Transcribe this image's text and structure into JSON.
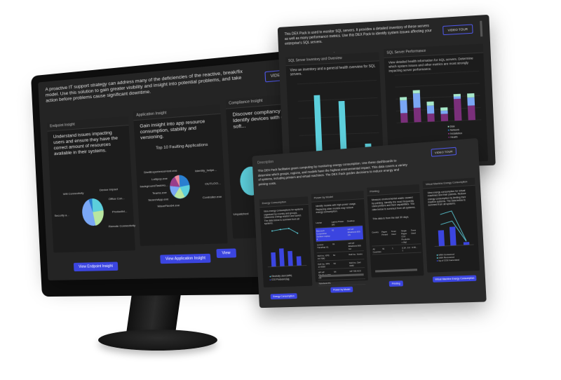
{
  "monitor": {
    "description": "A proactive IT support strategy can address many of the deficiencies of the reactive, break/fix model. Use this solution to gain greater visibility and insight into potential problems, and take action before problems cause significant downtime.",
    "video_tour": "VIDEO TOUR",
    "cards": [
      {
        "title": "Endpoint Insight",
        "text": "Understand issues impacting users and ensure they have the correct amount of resources available in their systems.",
        "button": "View Endpoint Insight",
        "pie_labels": [
          "Wifi Connectivity",
          "Device Impact",
          "Office Con...",
          "Productivi...",
          "Remote Connectivity",
          "Security a..."
        ]
      },
      {
        "title": "Application Insight",
        "text": "Gain insight into app resource consumption, stability and versioning.",
        "chart_title": "Top 10 Faulting Applications",
        "button": "View Application Insight",
        "pie_labels": [
          "ShellExperienceHost.exe",
          "Lollipop.exe",
          "backgroundTaskHo...",
          "Teams.exe",
          "SearchApp.exe",
          "WaveFlex64.exe",
          "Identity_helpe...",
          "OUTLOO...",
          "Controller.exe"
        ]
      },
      {
        "title": "Compliance Insight",
        "text": "Discover compliancy of systems. Identify devices with o... outdated soft...",
        "pie_labels": [
          "Unpatched"
        ],
        "button": "View"
      }
    ],
    "colors": {
      "cyan": "#5ccfdc",
      "blue": "#7aa7f5",
      "green": "#b9e6a0",
      "accent": "#3b45e0"
    }
  },
  "sql_panel": {
    "description": "This DEX Pack is used to monitor SQL servers. It provides a detailed inventory of these servers as well as many performance metrics. Use this DEX Pack to identify system issues affecting your enterprise's SQL servers.",
    "video_tour": "VIDEO TOUR",
    "inventory": {
      "title": "SQL Server Inventory and Overview",
      "text": "View an inventory and a general health overview for SQL servers."
    },
    "performance": {
      "title": "SQL Server Performance",
      "text": "View detailed health information for SQL servers. Determine which system issues and other metrics are most strongly impacting server performance.",
      "legend": [
        "Disk",
        "Network",
        "Installation",
        "Health"
      ]
    }
  },
  "energy_panel": {
    "heading": "Description",
    "description": "This DEX Pack facilitates green computing by monitoring energy consumption. Use these dashboards to determine which groups, regions, and models have the highest environmental impact. This data covers a variety of systems, including printers and virtual machines. The DEX Pack guides decisions to reduce energy and printing costs.",
    "video_tour": "VIDEO TOUR",
    "cards": [
      {
        "title": "Energy Consumption",
        "text": "View energy consumptions for systems organized by country and groups. Determine energy wasted and saved. The data below is summed from all systems.",
        "legend": [
          "Electricity Used (kWh)",
          "CO2 Produced (kg)"
        ],
        "button": "Energy Consumption"
      },
      {
        "title": "Power by Model",
        "text": "Identify models with high power usage. Replacing older models may reduce energy consumption.",
        "button": "Power by Model",
        "table_headers": [
          "Laptop",
          "Laptop Power (W)",
          "Desktop"
        ],
        "table_rows": [
          [
            "Microsoft Corporation Surface Laptop 4",
            "61",
            "HP HP EliteDesk 800 G5"
          ],
          [
            "Lenovo ThinkPad X1",
            "61",
            "HP HP EliteDesk 800 G2"
          ],
          [
            "Dell Inc. XPS 15 7590",
            "61",
            "Dell Inc. Vostro"
          ],
          [
            "Dell Inc. XPS 13 9530",
            "54",
            "Dell Inc. Dell 3040"
          ],
          [
            "HP HP EliteBook 840 G5",
            "54",
            "HP 705 ACC"
          ],
          [
            "Notebook PC",
            "",
            ""
          ]
        ]
      },
      {
        "title": "Printing",
        "text": "Measure environmental waste caused by printing. Identify the most frequently used printers and their capabilities. The data below is summed from all systems.",
        "subtext": "This data is from the last 30 days.",
        "button": "Printing",
        "table_headers": [
          "Country",
          "Pages Printed",
          "Toner Used",
          "Single Pages CO2 Production (kg)",
          "Trees Used"
        ],
        "table_rows": [
          [
            "All Countries",
            "91",
            "1",
            "0.14...0.27",
            "0.09..."
          ]
        ]
      },
      {
        "title": "Virtual Machine Energy Consumption",
        "text": "View energy consumption for virtual machines and their parents. Reduce energy consumption by limiting their inactive systems. The data below is summed from all systems.",
        "legend": [
          "kWh Consumed",
          "kWh Recovered",
          "kg of CO2 Generated"
        ],
        "button": "Virtual Machine Energy Consumption"
      }
    ]
  },
  "chart_data": [
    {
      "type": "bar",
      "title": "",
      "categories": [
        "1",
        "2",
        "3",
        "4",
        "5",
        "6"
      ],
      "values": [
        0.2,
        33,
        0.5,
        29,
        0.6,
        4
      ],
      "ylim": [
        0,
        40
      ]
    },
    {
      "type": "bar",
      "stacked": true,
      "categories": [
        "1",
        "2",
        "3",
        "4",
        "5",
        "6"
      ],
      "series": [
        {
          "name": "Health",
          "values": [
            12,
            18,
            10,
            9,
            27,
            18
          ]
        },
        {
          "name": "Network",
          "values": [
            16,
            18,
            10,
            4,
            3,
            10
          ]
        },
        {
          "name": "Disk",
          "values": [
            4,
            4,
            5,
            4,
            3,
            5
          ]
        }
      ],
      "ylim": [
        0,
        60
      ]
    },
    {
      "type": "bar+line",
      "categories": [
        "22 Jun",
        "23 Jun",
        "1 Jun",
        "15 Jun"
      ],
      "bar_values": [
        120,
        150,
        125,
        78
      ],
      "line_values": [
        430,
        460,
        480,
        320
      ],
      "legend": [
        "Electricity Used (kWh)",
        "CO2 Produced (kg)"
      ]
    }
  ]
}
